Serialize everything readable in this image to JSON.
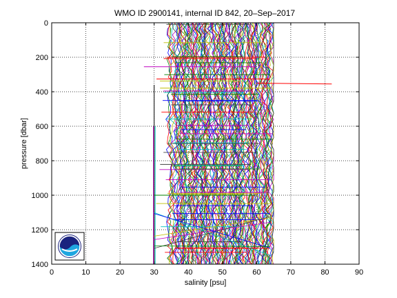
{
  "chart_data": {
    "type": "line",
    "title": "WMO ID 2900141, internal ID 842, 20–Sep–2017",
    "xlabel": "salinity [psu]",
    "ylabel": "pressure [dbar]",
    "xlim": [
      0,
      90
    ],
    "ylim": [
      1400,
      0
    ],
    "y_reversed": true,
    "grid": true,
    "x_ticks": [
      "0",
      "10",
      "20",
      "30",
      "40",
      "50",
      "60",
      "70",
      "80",
      "90"
    ],
    "y_ticks": [
      "0",
      "200",
      "400",
      "600",
      "800",
      "1000",
      "1200",
      "1400"
    ],
    "series_colors": [
      "#0000ff",
      "#008000",
      "#ff0000",
      "#00bfbf",
      "#bf00bf",
      "#bfbf00",
      "#404040"
    ],
    "profiles_approx": {
      "count": 140,
      "salinity_range": [
        30,
        65
      ],
      "pressure_range": [
        0,
        1400
      ]
    },
    "outliers": [
      {
        "x": [
          60,
          82
        ],
        "y": [
          350,
          355
        ],
        "color": "#ff0000"
      },
      {
        "x": [
          27,
          60
        ],
        "y": [
          255,
          255
        ],
        "color": "#bf00bf"
      },
      {
        "x": [
          30,
          60
        ],
        "y": [
          1000,
          1000
        ],
        "color": "#008000"
      }
    ],
    "logo_icon": "noaa-logo-icon"
  }
}
